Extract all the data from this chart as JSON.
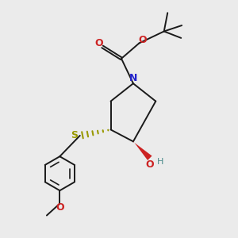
{
  "bg_color": "#ebebeb",
  "bond_color": "#1a1a1a",
  "N_color": "#2222cc",
  "O_color": "#cc2222",
  "S_color": "#999900",
  "H_color": "#4a8a8a",
  "fig_width": 3.0,
  "fig_height": 3.0,
  "dpi": 100,
  "xlim": [
    0,
    10
  ],
  "ylim": [
    0,
    10
  ],
  "Nx": 5.6,
  "Ny": 6.5,
  "C2x": 4.65,
  "C2y": 5.75,
  "C5x": 6.55,
  "C5y": 5.75,
  "C3x": 4.65,
  "C3y": 4.55,
  "C4x": 5.6,
  "C4y": 4.05,
  "CbocX": 5.1,
  "CbocY": 7.55,
  "OcarbX": 4.3,
  "OcarbY": 8.05,
  "OtBuX": 5.85,
  "OtBuY": 8.2,
  "CtBuX": 6.9,
  "CtBuY": 8.7,
  "Sx": 3.35,
  "Sy": 4.3,
  "BcX": 2.5,
  "BcY": 2.7,
  "Br": 0.72,
  "OhX": 6.3,
  "OhY": 3.35,
  "OmetOffY": 0.55,
  "MeOffX": -0.55,
  "MeOffY": -0.5
}
